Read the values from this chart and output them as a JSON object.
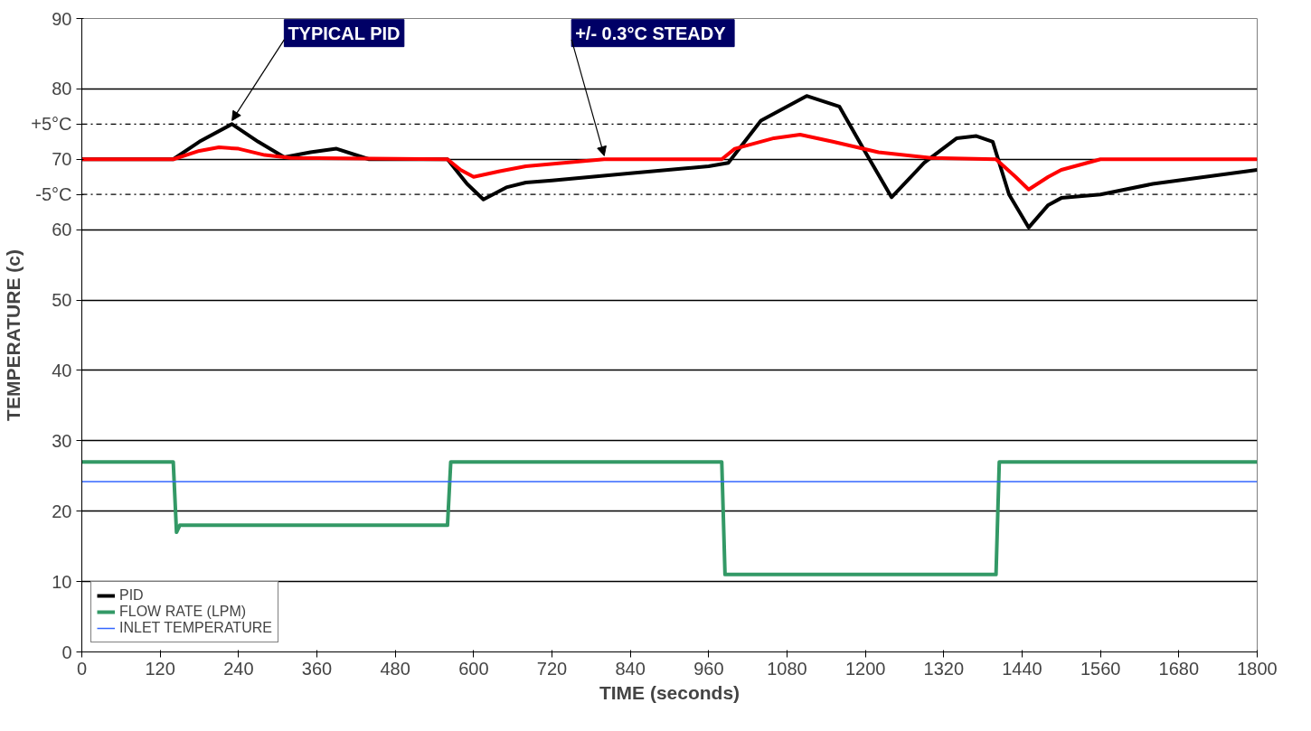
{
  "chart_data": {
    "type": "line",
    "xlabel": "TIME (seconds)",
    "ylabel": "TEMPERATURE (c)",
    "xlim": [
      0,
      1800
    ],
    "xticks": [
      0,
      120,
      240,
      360,
      480,
      600,
      720,
      840,
      960,
      1080,
      1200,
      1320,
      1440,
      1560,
      1680,
      1800
    ],
    "ylim": [
      0,
      90
    ],
    "yticks": [
      0,
      10,
      20,
      30,
      40,
      50,
      60,
      70,
      80,
      90
    ],
    "grid": "y",
    "legend": "bottom left",
    "line_style": "solid",
    "series": [
      {
        "name": "PID",
        "color": "#000000",
        "x": [
          0,
          140,
          180,
          230,
          270,
          310,
          350,
          390,
          440,
          560,
          590,
          615,
          650,
          680,
          720,
          840,
          960,
          990,
          1040,
          1110,
          1160,
          1200,
          1240,
          1290,
          1340,
          1370,
          1395,
          1420,
          1450,
          1480,
          1500,
          1560,
          1640,
          1720,
          1800
        ],
        "values": [
          70,
          70,
          72.5,
          75,
          72.5,
          70.3,
          71,
          71.5,
          70,
          70,
          66.5,
          64.3,
          66,
          66.7,
          67,
          68,
          69,
          69.5,
          75.5,
          79,
          77.5,
          71,
          64.6,
          69.5,
          73,
          73.3,
          72.5,
          65,
          60.3,
          63.5,
          64.5,
          65,
          66.5,
          67.5,
          68.5
        ]
      },
      {
        "color": "#ff0000",
        "x": [
          0,
          140,
          180,
          210,
          240,
          280,
          320,
          560,
          580,
          600,
          640,
          680,
          800,
          980,
          1000,
          1060,
          1100,
          1150,
          1220,
          1300,
          1400,
          1430,
          1450,
          1480,
          1500,
          1560,
          1800
        ],
        "values": [
          70,
          70,
          71.2,
          71.7,
          71.5,
          70.6,
          70.2,
          70,
          68.5,
          67.5,
          68.3,
          69,
          70,
          70,
          71.5,
          73,
          73.5,
          72.5,
          71,
          70.2,
          70,
          67.5,
          65.7,
          67.5,
          68.5,
          70,
          70
        ]
      },
      {
        "name": "FLOW RATE (LPM)",
        "color": "#339966",
        "x": [
          0,
          140,
          145,
          150,
          560,
          565,
          980,
          985,
          1400,
          1405,
          1800
        ],
        "values": [
          27,
          27,
          17,
          18,
          18,
          27,
          27,
          11,
          11,
          27,
          27
        ]
      },
      {
        "name": "INLET TEMPERATURE",
        "color": "#3366ff",
        "x": [
          0,
          300,
          600,
          900,
          1200,
          1500,
          1800
        ],
        "values": [
          24.2,
          24.2,
          24.2,
          24.2,
          24.2,
          24.2,
          24.2
        ]
      }
    ],
    "ref_lines": [
      {
        "axis": "y",
        "value": 75,
        "label": "+5°C",
        "line_style": "dashdot",
        "color": "#000000"
      },
      {
        "axis": "y",
        "value": 65,
        "label": "-5°C",
        "line_style": "dashdot",
        "color": "#000000"
      }
    ],
    "annotations": [
      {
        "text": "TYPICAL PID",
        "x": 230,
        "y": 75
      },
      {
        "text": "+/- 0.3°C  STEADY",
        "x": 800,
        "y": 70
      }
    ]
  }
}
